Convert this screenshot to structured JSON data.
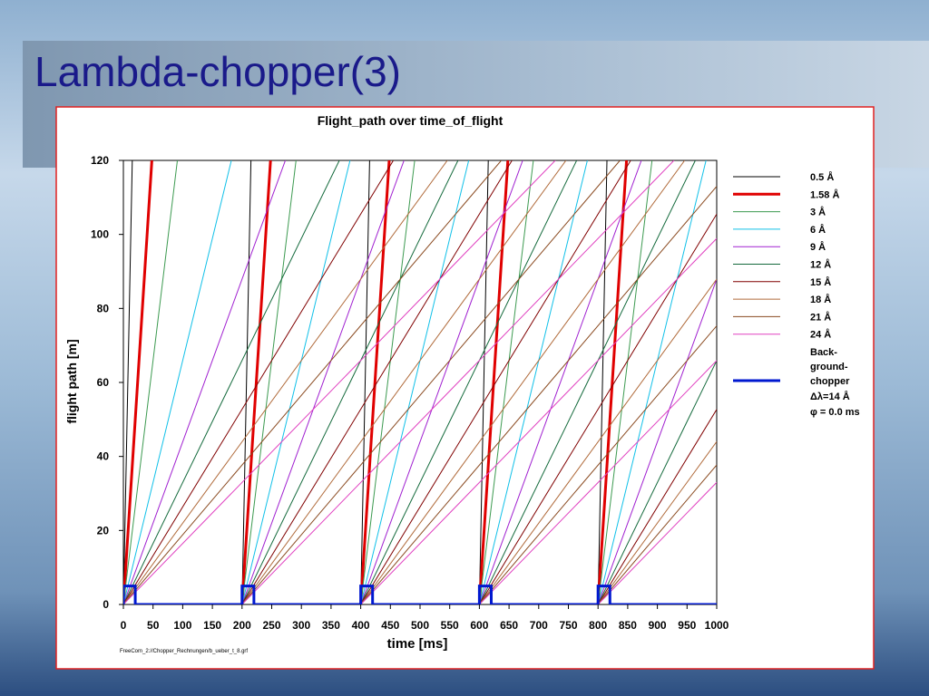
{
  "slide_title": "Lambda-chopper(3)",
  "chart_data": {
    "type": "line",
    "title": "Flight_path over time_of_flight",
    "x_label": "time [ms]",
    "y_label": "flight path [m]",
    "footer": "FreeCom_2://Chopper_Rechnungen/b_ueber_t_8.grf",
    "xlim": [
      0,
      1000
    ],
    "ylim": [
      0,
      120
    ],
    "xticks": [
      0,
      50,
      100,
      150,
      200,
      250,
      300,
      350,
      400,
      450,
      500,
      550,
      600,
      650,
      700,
      750,
      800,
      850,
      900,
      950,
      1000
    ],
    "yticks": [
      0,
      20,
      40,
      60,
      80,
      100,
      120
    ],
    "series": [
      {
        "name": "0.5 Å",
        "color": "#000000",
        "linewidth": 1,
        "x": [
          0,
          15,
          null,
          200,
          215,
          null,
          400,
          415,
          null,
          600,
          615,
          null,
          800,
          815
        ],
        "values": [
          0,
          120,
          null,
          0,
          120,
          null,
          0,
          120,
          null,
          0,
          120,
          null,
          0,
          120
        ]
      },
      {
        "name": "1.58 Å",
        "color": "#e00000",
        "linewidth": 3,
        "x": [
          0,
          48,
          null,
          200,
          248,
          null,
          400,
          448,
          null,
          600,
          648,
          null,
          800,
          848
        ],
        "values": [
          0,
          120,
          null,
          0,
          120,
          null,
          0,
          120,
          null,
          0,
          120,
          null,
          0,
          120
        ]
      },
      {
        "name": "3 Å",
        "color": "#3c9a50",
        "linewidth": 1,
        "x": [
          0,
          91,
          null,
          200,
          291,
          null,
          400,
          491,
          null,
          600,
          691,
          null,
          800,
          891
        ],
        "values": [
          0,
          120,
          null,
          0,
          120,
          null,
          0,
          120,
          null,
          0,
          120,
          null,
          0,
          120
        ]
      },
      {
        "name": "6 Å",
        "color": "#10c0e8",
        "linewidth": 1,
        "x": [
          0,
          182,
          null,
          200,
          382,
          null,
          400,
          582,
          null,
          600,
          782,
          null,
          800,
          982
        ],
        "values": [
          0,
          120,
          null,
          0,
          120,
          null,
          0,
          120,
          null,
          0,
          120,
          null,
          0,
          120
        ]
      },
      {
        "name": "9 Å",
        "color": "#a020d0",
        "linewidth": 1,
        "x": [
          0,
          273,
          null,
          200,
          473,
          null,
          400,
          673,
          null,
          600,
          873,
          null,
          800,
          1000
        ],
        "values": [
          0,
          120,
          null,
          0,
          120,
          null,
          0,
          120,
          null,
          0,
          120,
          null,
          0,
          87.9
        ]
      },
      {
        "name": "12 Å",
        "color": "#146a3c",
        "linewidth": 1,
        "x": [
          0,
          364,
          null,
          200,
          564,
          null,
          400,
          764,
          null,
          600,
          964,
          null,
          800,
          1000
        ],
        "values": [
          0,
          120,
          null,
          0,
          120,
          null,
          0,
          120,
          null,
          0,
          120,
          null,
          0,
          65.9
        ]
      },
      {
        "name": "15 Å",
        "color": "#800000",
        "linewidth": 1,
        "x": [
          0,
          455,
          null,
          200,
          655,
          null,
          400,
          855,
          null,
          600,
          1000,
          null,
          800,
          1000
        ],
        "values": [
          0,
          120,
          null,
          0,
          120,
          null,
          0,
          120,
          null,
          0,
          105.5,
          null,
          0,
          52.7
        ]
      },
      {
        "name": "18 Å",
        "color": "#b06a3a",
        "linewidth": 1,
        "x": [
          0,
          546,
          null,
          200,
          746,
          null,
          400,
          946,
          null,
          600,
          1000,
          null,
          800,
          1000
        ],
        "values": [
          0,
          120,
          null,
          0,
          120,
          null,
          0,
          120,
          null,
          0,
          87.9,
          null,
          0,
          44.0
        ]
      },
      {
        "name": "21 Å",
        "color": "#8a4a20",
        "linewidth": 1,
        "x": [
          0,
          637,
          null,
          200,
          837,
          null,
          400,
          1000,
          null,
          600,
          1000,
          null,
          800,
          1000
        ],
        "values": [
          0,
          120,
          null,
          0,
          120,
          null,
          0,
          113.0,
          null,
          0,
          75.3,
          null,
          0,
          37.7
        ]
      },
      {
        "name": "24 Å",
        "color": "#e040c0",
        "linewidth": 1,
        "x": [
          0,
          728,
          null,
          200,
          928,
          null,
          400,
          1000,
          null,
          600,
          1000,
          null,
          800,
          1000
        ],
        "values": [
          0,
          120,
          null,
          0,
          120,
          null,
          0,
          98.9,
          null,
          0,
          65.9,
          null,
          0,
          33.0
        ]
      },
      {
        "name": [
          "Back-",
          "ground-",
          "chopper"
        ],
        "color": "#0018d0",
        "linewidth": 3,
        "x": [
          0,
          0,
          20,
          20,
          200,
          200,
          220,
          220,
          400,
          400,
          420,
          420,
          600,
          600,
          620,
          620,
          800,
          800,
          820,
          820,
          1000
        ],
        "values": [
          0,
          5,
          5,
          0,
          0,
          5,
          5,
          0,
          0,
          5,
          5,
          0,
          0,
          5,
          5,
          0,
          0,
          5,
          5,
          0,
          0
        ]
      }
    ],
    "legend_notes": [
      "Δλ=14 Å",
      "φ = 0.0 ms"
    ]
  }
}
